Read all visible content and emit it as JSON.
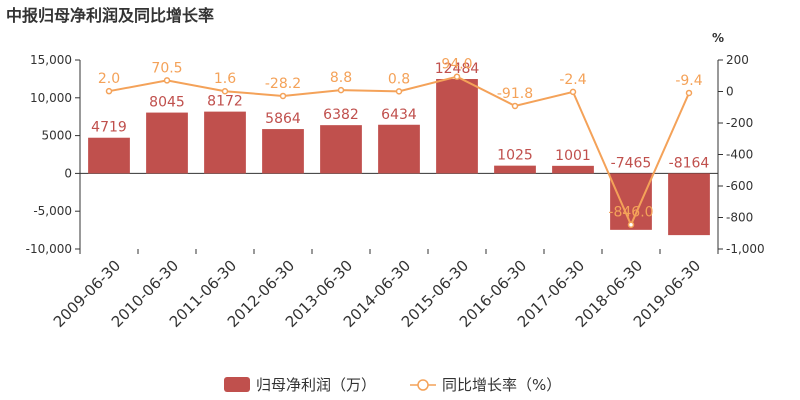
{
  "chart_data": {
    "type": "bar",
    "title": "中报归母净利润及同比增长率",
    "categories": [
      "2009-06-30",
      "2010-06-30",
      "2011-06-30",
      "2012-06-30",
      "2013-06-30",
      "2014-06-30",
      "2015-06-30",
      "2016-06-30",
      "2017-06-30",
      "2018-06-30",
      "2019-06-30"
    ],
    "series": [
      {
        "name": "归母净利润（万）",
        "type": "bar",
        "axis": "left",
        "values": [
          4719,
          8045,
          8172,
          5864,
          6382,
          6434,
          12484,
          1025,
          1001,
          -7465,
          -8164
        ],
        "labels": [
          "4719",
          "8045",
          "8172",
          "5864",
          "6382",
          "6434",
          "12484",
          "1025",
          "1001",
          "-7465",
          "-8164"
        ]
      },
      {
        "name": "同比增长率（%）",
        "type": "line",
        "axis": "right",
        "values": [
          2.0,
          70.5,
          1.6,
          -28.2,
          8.8,
          0.8,
          94.0,
          -91.8,
          -2.4,
          -846.0,
          -9.4
        ],
        "labels": [
          "2.0",
          "70.5",
          "1.6",
          "-28.2",
          "8.8",
          "0.8",
          "94.0",
          "-91.8",
          "-2.4",
          "-846.0",
          "-9.4"
        ]
      }
    ],
    "y_left": {
      "ylim": [
        -10000,
        15000
      ],
      "ticks": [
        15000,
        10000,
        5000,
        0,
        -5000,
        -10000
      ],
      "tick_labels": [
        "15,000",
        "10,000",
        "5000",
        "0",
        "-5,000",
        "-10,000"
      ]
    },
    "y_right": {
      "unit": "%",
      "ylim": [
        -1000,
        200
      ],
      "ticks": [
        200,
        0,
        -200,
        -400,
        -600,
        -800,
        -1000
      ],
      "tick_labels": [
        "200",
        "0",
        "-200",
        "-400",
        "-600",
        "-800",
        "-1,000"
      ]
    },
    "legend_position": "bottom-center",
    "colors": {
      "bar": "#c0504d",
      "line": "#f4a259"
    }
  }
}
